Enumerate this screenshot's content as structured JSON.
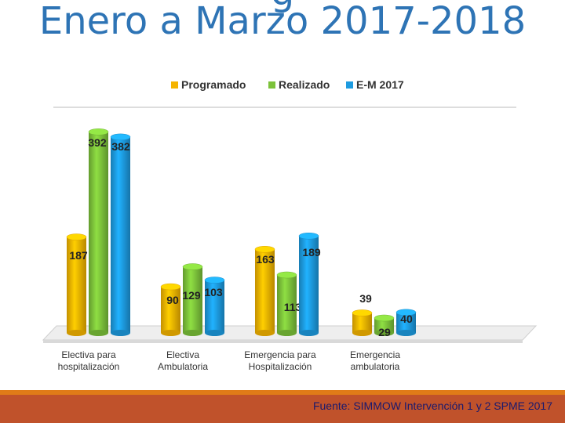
{
  "slide": {
    "title_partial": "g",
    "title": "Enero a Marzo 2017-2018",
    "source": "Fuente: SIMMOW Intervención 1 y 2  SPME 2017"
  },
  "colors": {
    "programado": "#f5b400",
    "realizado": "#7cc23a",
    "em2017": "#1d9be0",
    "title": "#2e74b5",
    "footer": "#c0522b"
  },
  "chart_data": {
    "type": "bar",
    "title": "",
    "xlabel": "",
    "ylabel": "",
    "grid": false,
    "legend_position": "top",
    "categories": [
      [
        "Electiva para",
        "hospitalización"
      ],
      [
        "Electiva",
        "Ambulatoria"
      ],
      [
        "Emergencia para",
        "Hospitalización"
      ],
      [
        "Emergencia",
        "ambulatoria"
      ]
    ],
    "series": [
      {
        "name": "Programado",
        "values": [
          187,
          90,
          163,
          39
        ]
      },
      {
        "name": "Realizado",
        "values": [
          392,
          129,
          113,
          29
        ]
      },
      {
        "name": "E-M 2017",
        "values": [
          382,
          103,
          189,
          40
        ]
      }
    ],
    "ylim": [
      0,
      420
    ]
  }
}
